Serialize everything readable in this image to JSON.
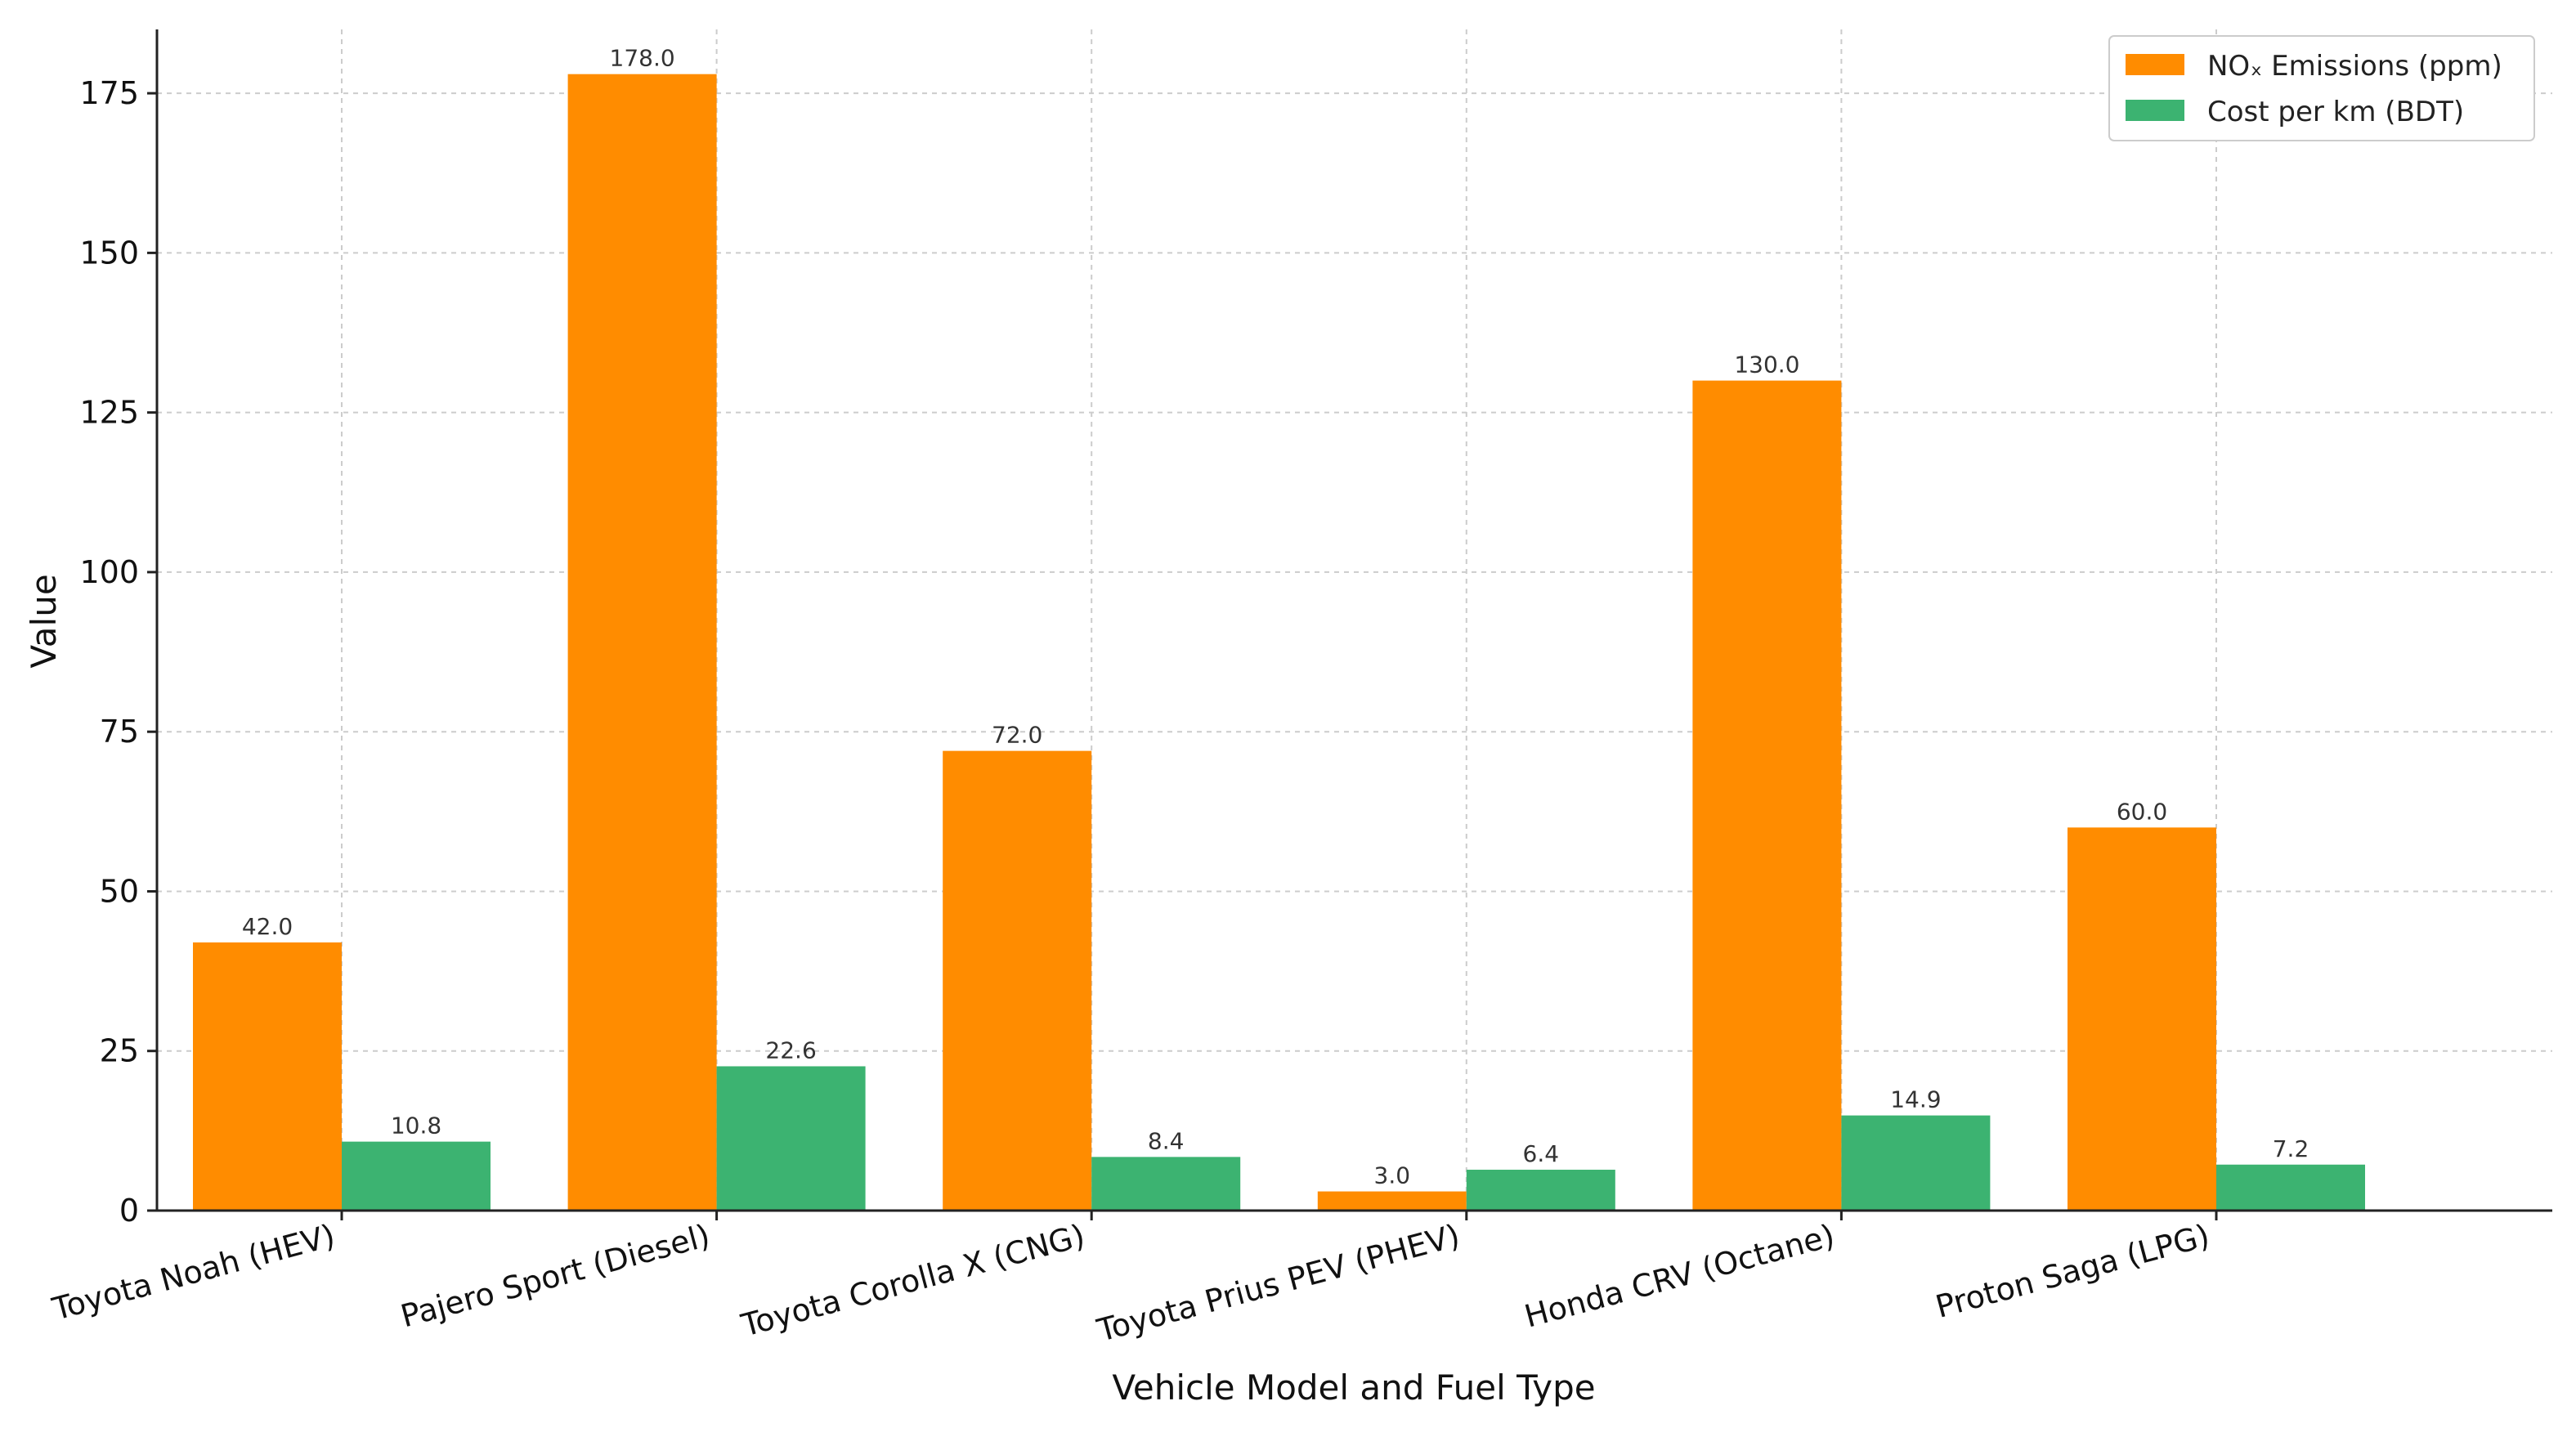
{
  "chart_data": {
    "type": "bar",
    "categories": [
      "Toyota Noah (HEV)",
      "Pajero Sport (Diesel)",
      "Toyota Corolla X (CNG)",
      "Toyota Prius PEV (PHEV)",
      "Honda CRV (Octane)",
      "Proton Saga (LPG)"
    ],
    "series": [
      {
        "name": "NOₓ Emissions (ppm)",
        "values": [
          42.0,
          178.0,
          72.0,
          3.0,
          130.0,
          60.0
        ],
        "labels": [
          "42.0",
          "178.0",
          "72.0",
          "3.0",
          "130.0",
          "60.0"
        ],
        "color": "#ff8c00"
      },
      {
        "name": "Cost per km (BDT)",
        "values": [
          10.8,
          22.6,
          8.4,
          6.4,
          14.9,
          7.2
        ],
        "labels": [
          "10.8",
          "22.6",
          "8.4",
          "6.4",
          "14.9",
          "7.2"
        ],
        "color": "#3cb371"
      }
    ],
    "xlabel": "Vehicle Model and Fuel Type",
    "ylabel": "Value",
    "ylim": [
      0,
      185
    ],
    "yticks": [
      0,
      25,
      50,
      75,
      100,
      125,
      150,
      175
    ],
    "ytick_labels": [
      "0",
      "25",
      "50",
      "75",
      "100",
      "125",
      "150",
      "175"
    ],
    "grid": true,
    "legend_position": "top-right"
  }
}
